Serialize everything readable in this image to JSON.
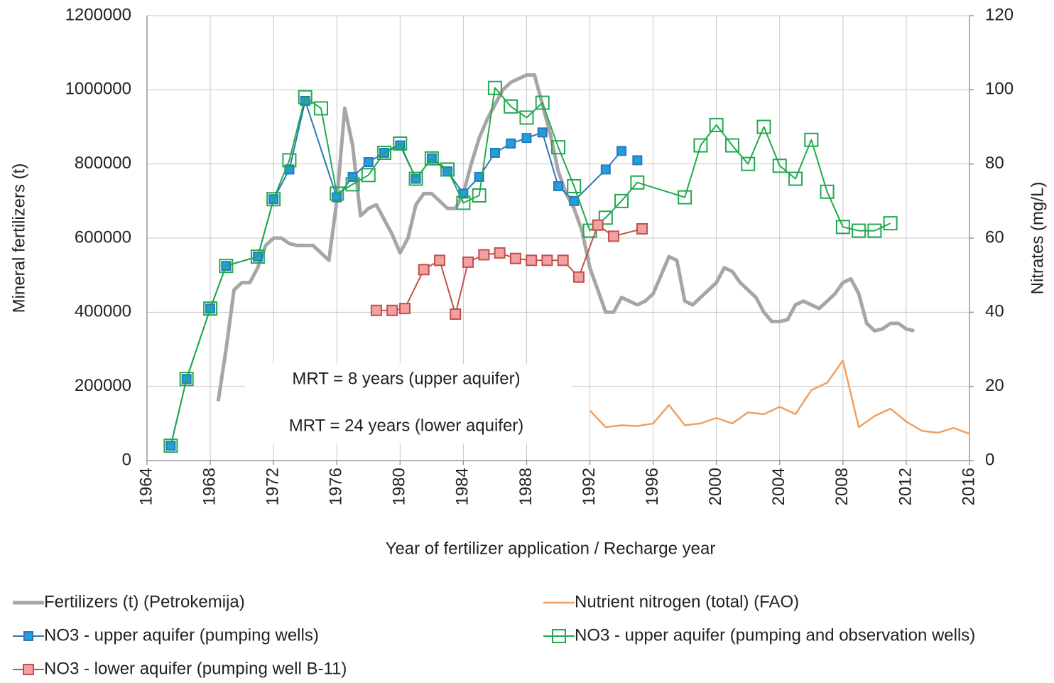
{
  "chart_data": {
    "type": "line",
    "x_label": "Year of fertilizer application / Recharge year",
    "y_label": "Mineral fertilizers (t)",
    "y2_label": "Nitrates (mg/L)",
    "xlim": [
      1964,
      2016
    ],
    "xticks": [
      1964,
      1968,
      1972,
      1976,
      1980,
      1984,
      1988,
      1992,
      1996,
      2000,
      2004,
      2008,
      2012,
      2016
    ],
    "ylim": [
      0,
      1200000
    ],
    "yticks": [
      0,
      200000,
      400000,
      600000,
      800000,
      1000000,
      1200000
    ],
    "y2lim": [
      0,
      120
    ],
    "y2ticks": [
      0,
      20,
      40,
      60,
      80,
      100,
      120
    ],
    "grid": true,
    "legend": "bottom",
    "annotations": [
      "MRT = 8 years (upper aquifer)",
      "MRT = 24 years (lower aquifer)"
    ],
    "series": [
      {
        "name": "Fertilizers (t) (Petrokemija)",
        "color": "#a6a6a6",
        "marker": "none",
        "x": [
          1968.5,
          1969,
          1969.5,
          1970,
          1970.5,
          1971,
          1971.5,
          1972,
          1972.5,
          1973,
          1973.5,
          1974,
          1974.5,
          1975,
          1975.5,
          1976,
          1976.5,
          1977,
          1977.5,
          1978,
          1978.5,
          1979,
          1979.5,
          1980,
          1980.5,
          1981,
          1981.5,
          1982,
          1982.5,
          1983,
          1983.5,
          1984,
          1984.5,
          1985,
          1985.5,
          1986,
          1986.5,
          1987,
          1987.5,
          1988,
          1988.5,
          1989,
          1989.5,
          1990,
          1990.5,
          1991,
          1991.5,
          1992,
          1992.5,
          1993,
          1993.5,
          1994,
          1994.5,
          1995,
          1995.5,
          1996,
          1996.5,
          1997,
          1997.5,
          1998,
          1998.5,
          1999,
          1999.5,
          2000,
          2000.5,
          2001,
          2001.5,
          2002,
          2002.5,
          2003,
          2003.5,
          2004,
          2004.5,
          2005,
          2005.5,
          2006,
          2006.5,
          2007,
          2007.5,
          2008,
          2008.5,
          2009,
          2009.5,
          2010,
          2010.5,
          2011,
          2011.5,
          2012,
          2012.5
        ],
        "values": [
          160000,
          300000,
          460000,
          480000,
          480000,
          520000,
          580000,
          600000,
          600000,
          585000,
          580000,
          580000,
          580000,
          560000,
          540000,
          700000,
          950000,
          850000,
          660000,
          680000,
          690000,
          650000,
          610000,
          560000,
          600000,
          690000,
          720000,
          720000,
          700000,
          680000,
          680000,
          720000,
          800000,
          870000,
          920000,
          960000,
          1000000,
          1020000,
          1030000,
          1040000,
          1040000,
          960000,
          880000,
          780000,
          720000,
          680000,
          620000,
          520000,
          460000,
          400000,
          400000,
          440000,
          430000,
          420000,
          430000,
          450000,
          500000,
          550000,
          540000,
          430000,
          420000,
          440000,
          460000,
          480000,
          520000,
          510000,
          480000,
          460000,
          440000,
          400000,
          375000,
          375000,
          380000,
          420000,
          430000,
          420000,
          410000,
          430000,
          450000,
          480000,
          490000,
          450000,
          370000,
          350000,
          355000,
          370000,
          370000,
          355000,
          350000
        ]
      },
      {
        "name": "Nutrient nitrogen (total) (FAO)",
        "color": "#f0a060",
        "marker": "none",
        "x": [
          1992,
          1993,
          1994,
          1995,
          1996,
          1997,
          1998,
          1999,
          2000,
          2001,
          2002,
          2003,
          2004,
          2005,
          2006,
          2007,
          2008,
          2009,
          2010,
          2011,
          2012,
          2013,
          2014,
          2015,
          2016
        ],
        "values": [
          135000,
          90000,
          95000,
          93000,
          100000,
          150000,
          95000,
          100000,
          115000,
          100000,
          130000,
          125000,
          145000,
          125000,
          190000,
          210000,
          270000,
          90000,
          120000,
          140000,
          105000,
          80000,
          75000,
          88000,
          72000
        ]
      },
      {
        "name": "NO3 - upper aquifer (pumping wells)",
        "color": "#2e75b6",
        "marker_fill": "#1ea0e0",
        "marker": "square-filled",
        "axis": "y2",
        "x": [
          1965.5,
          1966.5,
          1968,
          1969,
          1971,
          1972,
          1973,
          1974,
          1976,
          1977,
          1978,
          1979,
          1980,
          1981,
          1982,
          1983,
          1984,
          1985,
          1986,
          1987,
          1988,
          1989,
          1990,
          1991,
          1993,
          1994,
          null,
          1995
        ],
        "values": [
          4,
          22,
          41,
          52.5,
          55,
          70.5,
          78.5,
          97,
          71,
          76.5,
          80.5,
          83,
          85,
          76,
          81.5,
          78,
          72,
          76.5,
          83,
          85.5,
          87,
          88.5,
          74,
          70,
          78.5,
          83.5,
          null,
          81
        ]
      },
      {
        "name": "NO3 - upper aquifer (pumping and observation wells)",
        "color": "#1faa4f",
        "marker_fill": "none",
        "marker": "square-open",
        "axis": "y2",
        "x": [
          1965.5,
          1966.5,
          1968,
          1969,
          1971,
          1972,
          1973,
          1974,
          1975,
          1976,
          1977,
          1978,
          1979,
          1980,
          1981,
          1982,
          1983,
          1984,
          1985,
          1986,
          1987,
          1988,
          1989,
          1990,
          1991,
          1992,
          1993,
          1994,
          1995,
          1998,
          1999,
          2000,
          2001,
          2002,
          2003,
          2004,
          2005,
          2006,
          2007,
          2008,
          2009,
          2010,
          2011
        ],
        "values": [
          4,
          22,
          41,
          52.5,
          55,
          70.5,
          81,
          98,
          95,
          72,
          74.5,
          77,
          83,
          85.5,
          76,
          81.5,
          78.5,
          69.5,
          71.5,
          100.5,
          95.5,
          92.5,
          96.5,
          84.5,
          74,
          62,
          65.5,
          70,
          75,
          71,
          85,
          90.5,
          85,
          80,
          90,
          79.5,
          76,
          86.5,
          72.5,
          63,
          62,
          62,
          64
        ]
      },
      {
        "name": "NO3 - lower aquifer (pumping well B-11)",
        "color": "#c0504d",
        "marker_fill": "#f2a0a0",
        "marker": "square-filled",
        "axis": "y2",
        "x": [
          1978.5,
          1979.5,
          1980.3,
          1981.5,
          1982.5,
          1983.5,
          1984.3,
          1985.3,
          1986.3,
          1987.3,
          1988.3,
          1989.3,
          1990.3,
          1991.3,
          1992.5,
          1993.5,
          1995.3
        ],
        "values": [
          40.5,
          40.5,
          41,
          51.5,
          54,
          39.5,
          53.5,
          55.5,
          56,
          54.5,
          54,
          54,
          54,
          49.5,
          63.5,
          60.5,
          62.5
        ]
      }
    ]
  }
}
